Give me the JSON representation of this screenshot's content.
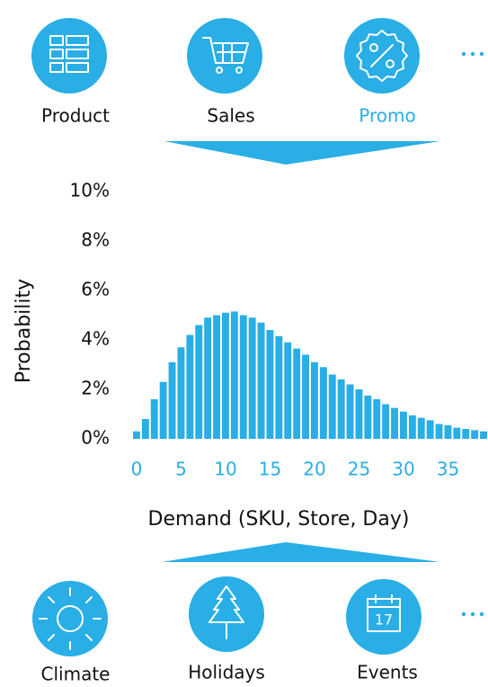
{
  "top_factors": [
    "Product",
    "Sales",
    "Promo"
  ],
  "bottom_factors": [
    "Climate",
    "Holidays",
    "Events"
  ],
  "calendar_day": "17",
  "chart_data": {
    "type": "bar",
    "color": "#29aee6",
    "xlabel": "Demand (SKU, Store, Day)",
    "ylabel": "Probability",
    "x": [
      0,
      1,
      2,
      3,
      4,
      5,
      6,
      7,
      8,
      9,
      10,
      11,
      12,
      13,
      14,
      15,
      16,
      17,
      18,
      19,
      20,
      21,
      22,
      23,
      24,
      25,
      26,
      27,
      28,
      29,
      30,
      31,
      32,
      33,
      34,
      35,
      36,
      37,
      38,
      39
    ],
    "values": [
      0.3,
      0.8,
      1.6,
      2.3,
      3.1,
      3.7,
      4.2,
      4.6,
      4.9,
      5.0,
      5.1,
      5.15,
      5.0,
      4.9,
      4.7,
      4.4,
      4.15,
      3.9,
      3.65,
      3.4,
      3.1,
      2.9,
      2.6,
      2.4,
      2.2,
      2.0,
      1.75,
      1.6,
      1.4,
      1.25,
      1.1,
      0.95,
      0.85,
      0.75,
      0.6,
      0.55,
      0.45,
      0.4,
      0.35,
      0.3
    ],
    "xlim": [
      -0.5,
      39.5
    ],
    "xticks": [
      0,
      5,
      10,
      15,
      20,
      25,
      30,
      35
    ],
    "ylim": [
      0,
      10
    ],
    "yticks": [
      {
        "value": 0,
        "label": "0%"
      },
      {
        "value": 2,
        "label": "2%"
      },
      {
        "value": 4,
        "label": "4%"
      },
      {
        "value": 6,
        "label": "6%"
      },
      {
        "value": 8,
        "label": "8%"
      },
      {
        "value": 10,
        "label": "10%"
      }
    ]
  }
}
